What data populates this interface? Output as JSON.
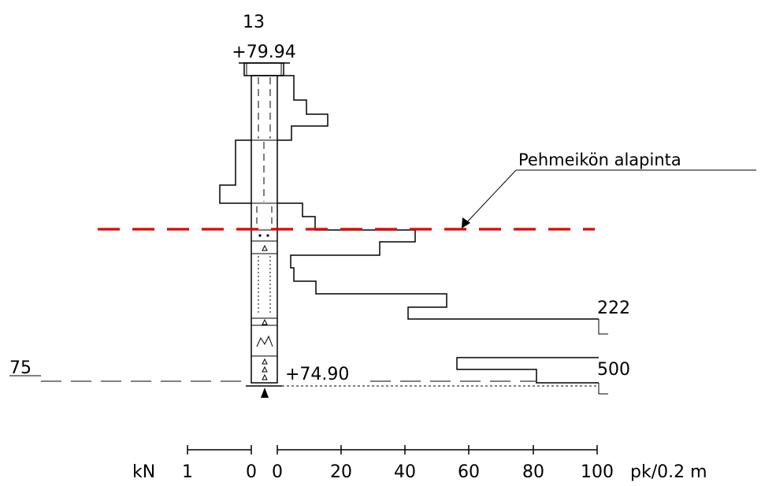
{
  "borehole": {
    "id": "13",
    "top_elevation": "+79.94",
    "bottom_elevation": "+74.90"
  },
  "level_label": "75",
  "annotation": "Pehmeikön alapinta",
  "stop_values": [
    "222",
    "500"
  ],
  "scale_left": {
    "unit": "kN",
    "ticks": [
      "1",
      "0"
    ]
  },
  "scale_right": {
    "ticks": [
      "0",
      "20",
      "40",
      "60",
      "80",
      "100"
    ],
    "unit": "pk/0.2 m"
  },
  "colors": {
    "soft_layer_line": "#e00000",
    "ink": "#000000"
  },
  "chart_data": {
    "type": "step",
    "x_axis": {
      "range": [
        0,
        100
      ],
      "unit": "pk/0.2 m"
    },
    "profile_pk_per_02m": [
      3,
      3,
      7,
      7,
      13,
      13,
      16,
      16,
      14,
      -14,
      -14,
      -14,
      -10,
      -10,
      -10,
      -10,
      -14,
      -14,
      -14,
      6,
      10,
      10,
      43,
      32,
      32,
      4,
      4,
      5,
      5,
      12,
      12,
      12,
      53,
      41,
      41,
      101,
      55,
      55,
      100,
      81,
      81,
      101
    ]
  }
}
